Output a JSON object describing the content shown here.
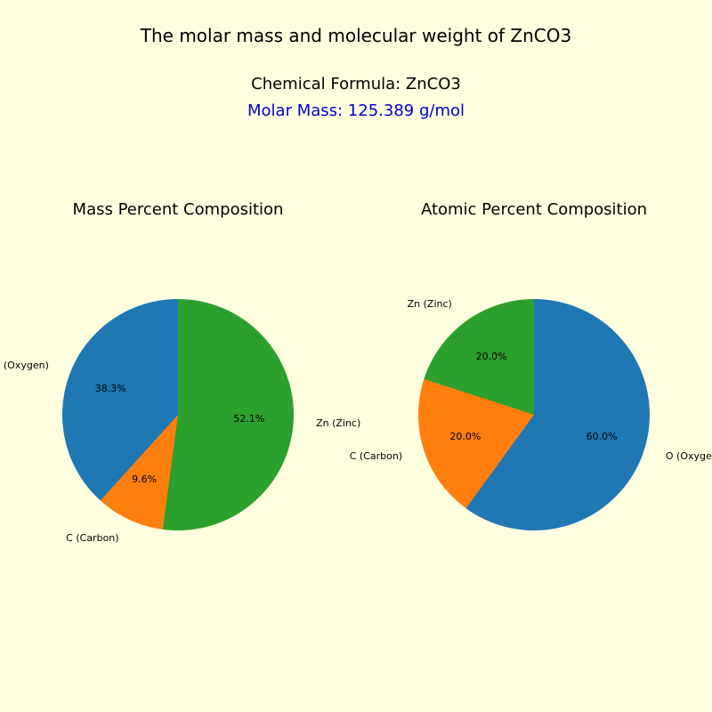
{
  "main_title": "The molar mass and molecular weight of ZnCO3",
  "formula_line": "Chemical Formula: ZnCO3",
  "molar_line": "Molar Mass: 125.389 g/mol",
  "background_color": "#ffffe0",
  "title_fontsize": 20,
  "subtitle_fontsize": 18,
  "molar_color": "#0000cc",
  "label_fontsize": 11,
  "colors": {
    "oxygen": "#1f77b4",
    "carbon": "#ff7f0e",
    "zinc": "#2ca02c"
  },
  "mass_chart": {
    "title": "Mass Percent Composition",
    "type": "pie",
    "start_angle_deg": 90,
    "direction": "ccw",
    "slices": [
      {
        "label": "O (Oxygen)",
        "value": 38.3,
        "pct_text": "38.3%",
        "color": "#1f77b4"
      },
      {
        "label": "C (Carbon)",
        "value": 9.6,
        "pct_text": "9.6%",
        "color": "#ff7f0e"
      },
      {
        "label": "Zn (Zinc)",
        "value": 52.1,
        "pct_text": "52.1%",
        "color": "#2ca02c"
      }
    ]
  },
  "atomic_chart": {
    "title": "Atomic Percent Composition",
    "type": "pie",
    "start_angle_deg": 90,
    "direction": "ccw",
    "slices": [
      {
        "label": "Zn (Zinc)",
        "value": 20.0,
        "pct_text": "20.0%",
        "color": "#2ca02c"
      },
      {
        "label": "C (Carbon)",
        "value": 20.0,
        "pct_text": "20.0%",
        "color": "#ff7f0e"
      },
      {
        "label": "O (Oxygen)",
        "value": 60.0,
        "pct_text": "60.0%",
        "color": "#1f77b4"
      }
    ]
  }
}
